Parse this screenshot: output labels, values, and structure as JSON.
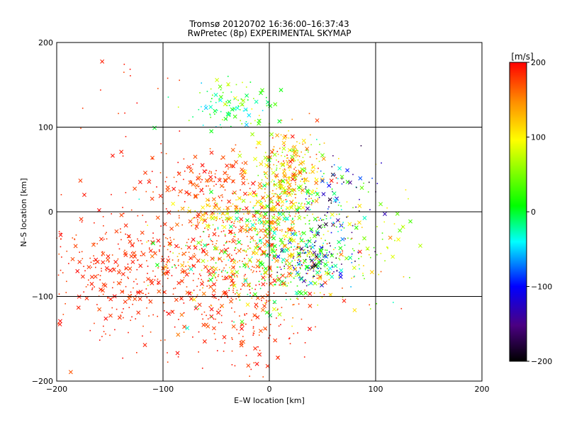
{
  "chart_data": {
    "type": "scatter",
    "title": "Tromsø 20120702 16:36:00–16:37:43",
    "subtitle": "RwPretec (8p) EXPERIMENTAL SKYMAP",
    "xlabel": "E–W location [km]",
    "ylabel": "N–S location [km]",
    "xlim": [
      -200,
      200
    ],
    "ylim": [
      -200,
      200
    ],
    "x_ticks": [
      "−200",
      "−100",
      "0",
      "100",
      "200"
    ],
    "y_ticks": [
      "−200",
      "−100",
      "0",
      "100",
      "200"
    ],
    "grid": true,
    "colorbar": {
      "label": "[m/s]",
      "range": [
        -200,
        200
      ],
      "ticks": [
        "200",
        "100",
        "0",
        "−100",
        "−200"
      ],
      "colormap": [
        "#000000",
        "#4b0082",
        "#0000ff",
        "#00ffff",
        "#00ff00",
        "#ffff00",
        "#ff8c00",
        "#ff0000"
      ]
    },
    "markers": [
      "x",
      "dot"
    ],
    "clusters": [
      {
        "cx": -140,
        "cy": -70,
        "sx": 45,
        "sy": 40,
        "n": 380,
        "vmin": 170,
        "vmax": 200
      },
      {
        "cx": -40,
        "cy": -55,
        "sx": 35,
        "sy": 45,
        "n": 320,
        "vmin": 160,
        "vmax": 200
      },
      {
        "cx": -25,
        "cy": -130,
        "sx": 35,
        "sy": 35,
        "n": 140,
        "vmin": 170,
        "vmax": 200
      },
      {
        "cx": -60,
        "cy": 40,
        "sx": 25,
        "sy": 15,
        "n": 120,
        "vmin": 160,
        "vmax": 200
      },
      {
        "cx": 20,
        "cy": 45,
        "sx": 18,
        "sy": 25,
        "n": 260,
        "vmin": 40,
        "vmax": 200
      },
      {
        "cx": 5,
        "cy": 0,
        "sx": 15,
        "sy": 25,
        "n": 220,
        "vmin": -40,
        "vmax": 160
      },
      {
        "cx": -40,
        "cy": 125,
        "sx": 22,
        "sy": 15,
        "n": 110,
        "vmin": -60,
        "vmax": 100
      },
      {
        "cx": -45,
        "cy": 0,
        "sx": 20,
        "sy": 8,
        "n": 80,
        "vmin": 60,
        "vmax": 140
      },
      {
        "cx": 40,
        "cy": -55,
        "sx": 18,
        "sy": 15,
        "n": 180,
        "vmin": -200,
        "vmax": 60
      },
      {
        "cx": 60,
        "cy": 10,
        "sx": 20,
        "sy": 25,
        "n": 110,
        "vmin": -200,
        "vmax": 40
      },
      {
        "cx": 0,
        "cy": -60,
        "sx": 45,
        "sy": 30,
        "n": 400,
        "vmin": -40,
        "vmax": 200
      },
      {
        "cx": 75,
        "cy": -30,
        "sx": 30,
        "sy": 40,
        "n": 90,
        "vmin": 20,
        "vmax": 120
      },
      {
        "cx": -130,
        "cy": 120,
        "sx": 25,
        "sy": 50,
        "n": 25,
        "vmin": 170,
        "vmax": 200
      }
    ]
  }
}
